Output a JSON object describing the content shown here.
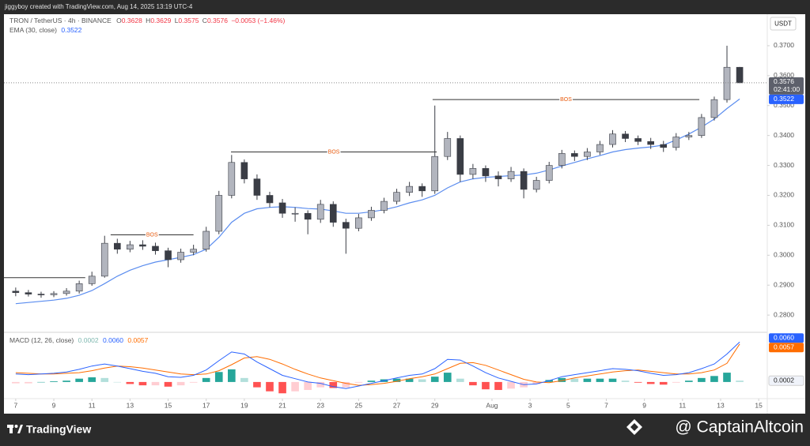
{
  "header": {
    "credit": "jiggyboy created with TradingView.com, Aug 14, 2025 13:19 UTC-4"
  },
  "footer": {
    "brand": "TradingView",
    "handle": "@ CaptainAltcoin"
  },
  "chart_data": [
    {
      "type": "candlestick",
      "title": "TRON / TetherUS · 4h · BINANCE",
      "ohlc_labels": [
        "O",
        "H",
        "L",
        "C"
      ],
      "change": "−0.0053 (−1.46%)",
      "countdown": "02:41:00",
      "currency": "USDT",
      "up_color": "#b2b5be",
      "down_color": "#3a3d45",
      "wick_color": "#3a3d45",
      "grid": false,
      "x": [
        0,
        4,
        8,
        12,
        16,
        20,
        24,
        28,
        32,
        36,
        40,
        44,
        48,
        52,
        56,
        60,
        64,
        68,
        72,
        76,
        80,
        84,
        88,
        92,
        96,
        100,
        104,
        108,
        112,
        116,
        120,
        124,
        128,
        132,
        136,
        140,
        144,
        148,
        152,
        156,
        160,
        164,
        168,
        172,
        176,
        180,
        184,
        188,
        192,
        196,
        200,
        204,
        208,
        212,
        216,
        220,
        224,
        228
      ],
      "ohlc": [
        [
          0.288,
          0.2892,
          0.2863,
          0.2875
        ],
        [
          0.2875,
          0.2884,
          0.2862,
          0.287
        ],
        [
          0.287,
          0.2878,
          0.2858,
          0.2868
        ],
        [
          0.2868,
          0.288,
          0.286,
          0.2872
        ],
        [
          0.2872,
          0.289,
          0.2865,
          0.288
        ],
        [
          0.288,
          0.2915,
          0.2872,
          0.2905
        ],
        [
          0.2905,
          0.2945,
          0.2898,
          0.293
        ],
        [
          0.293,
          0.3065,
          0.2925,
          0.304
        ],
        [
          0.304,
          0.3055,
          0.3005,
          0.302
        ],
        [
          0.302,
          0.3048,
          0.301,
          0.3035
        ],
        [
          0.3035,
          0.305,
          0.3018,
          0.303
        ],
        [
          0.303,
          0.3042,
          0.3002,
          0.3015
        ],
        [
          0.3015,
          0.3025,
          0.296,
          0.2985
        ],
        [
          0.2985,
          0.3022,
          0.2975,
          0.301
        ],
        [
          0.301,
          0.3035,
          0.3,
          0.302
        ],
        [
          0.302,
          0.3095,
          0.3012,
          0.308
        ],
        [
          0.308,
          0.3215,
          0.307,
          0.32
        ],
        [
          0.32,
          0.3335,
          0.319,
          0.331
        ],
        [
          0.331,
          0.332,
          0.324,
          0.3255
        ],
        [
          0.3255,
          0.327,
          0.3185,
          0.32
        ],
        [
          0.32,
          0.3212,
          0.316,
          0.3175
        ],
        [
          0.3175,
          0.3188,
          0.3125,
          0.314
        ],
        [
          0.314,
          0.316,
          0.3112,
          0.314
        ],
        [
          0.314,
          0.315,
          0.307,
          0.312
        ],
        [
          0.312,
          0.3185,
          0.3108,
          0.317
        ],
        [
          0.317,
          0.318,
          0.3095,
          0.311
        ],
        [
          0.311,
          0.3122,
          0.3005,
          0.309
        ],
        [
          0.309,
          0.3138,
          0.308,
          0.3125
        ],
        [
          0.3125,
          0.3162,
          0.3115,
          0.315
        ],
        [
          0.315,
          0.3192,
          0.314,
          0.318
        ],
        [
          0.318,
          0.3222,
          0.317,
          0.321
        ],
        [
          0.321,
          0.3245,
          0.3198,
          0.323
        ],
        [
          0.323,
          0.324,
          0.3195,
          0.3215
        ],
        [
          0.3215,
          0.35,
          0.3205,
          0.333
        ],
        [
          0.333,
          0.3412,
          0.3318,
          0.339
        ],
        [
          0.339,
          0.34,
          0.3245,
          0.327
        ],
        [
          0.327,
          0.3305,
          0.3255,
          0.329
        ],
        [
          0.329,
          0.33,
          0.3245,
          0.3265
        ],
        [
          0.3265,
          0.328,
          0.323,
          0.3255
        ],
        [
          0.3255,
          0.3295,
          0.3245,
          0.328
        ],
        [
          0.328,
          0.329,
          0.319,
          0.322
        ],
        [
          0.322,
          0.3262,
          0.321,
          0.325
        ],
        [
          0.325,
          0.3312,
          0.324,
          0.33
        ],
        [
          0.33,
          0.3352,
          0.329,
          0.334
        ],
        [
          0.334,
          0.335,
          0.3315,
          0.333
        ],
        [
          0.333,
          0.3358,
          0.3318,
          0.3345
        ],
        [
          0.3345,
          0.3382,
          0.3335,
          0.337
        ],
        [
          0.337,
          0.3418,
          0.336,
          0.3405
        ],
        [
          0.3405,
          0.3415,
          0.3378,
          0.339
        ],
        [
          0.339,
          0.34,
          0.3368,
          0.338
        ],
        [
          0.338,
          0.3392,
          0.3355,
          0.337
        ],
        [
          0.337,
          0.3382,
          0.3345,
          0.336
        ],
        [
          0.336,
          0.3408,
          0.335,
          0.3395
        ],
        [
          0.3395,
          0.3412,
          0.3385,
          0.34
        ],
        [
          0.34,
          0.3472,
          0.3392,
          0.346
        ],
        [
          0.346,
          0.353,
          0.345,
          0.352
        ],
        [
          0.352,
          0.37,
          0.351,
          0.3628
        ],
        [
          0.3628,
          0.3629,
          0.3575,
          0.3576
        ]
      ],
      "ema": {
        "name": "EMA (30, close)",
        "color": "#5b8def",
        "values": [
          0.2838,
          0.2842,
          0.2846,
          0.285,
          0.2856,
          0.2866,
          0.2882,
          0.2905,
          0.293,
          0.295,
          0.2965,
          0.2977,
          0.2985,
          0.2993,
          0.3002,
          0.302,
          0.306,
          0.311,
          0.314,
          0.3155,
          0.316,
          0.3162,
          0.316,
          0.3156,
          0.3154,
          0.3148,
          0.314,
          0.314,
          0.3145,
          0.3152,
          0.3162,
          0.3175,
          0.3185,
          0.32,
          0.3225,
          0.3245,
          0.3255,
          0.326,
          0.3263,
          0.3266,
          0.3268,
          0.3274,
          0.3285,
          0.3298,
          0.331,
          0.3322,
          0.3333,
          0.3345,
          0.3353,
          0.3358,
          0.3362,
          0.3368,
          0.3385,
          0.3405,
          0.3428,
          0.3455,
          0.349,
          0.3522
        ]
      },
      "level_color": "#333333",
      "level_label_color": "#e8590c",
      "levels": [
        {
          "value": 0.2925,
          "x": [
            -3.7,
            21.9
          ]
        },
        {
          "label": "BOS",
          "value": 0.3068,
          "x": [
            29.9,
            56
          ]
        },
        {
          "label": "BOS",
          "value": 0.3345,
          "x": [
            67.8,
            132.6
          ]
        },
        {
          "label": "BOS",
          "value": 0.352,
          "x": [
            131.3,
            215.3
          ]
        }
      ],
      "xlim": [
        -3.7,
        236.7
      ],
      "xticks": [
        {
          "value": 0,
          "label": "7"
        },
        {
          "value": 12,
          "label": "9"
        },
        {
          "value": 24,
          "label": "11"
        },
        {
          "value": 36,
          "label": "13"
        },
        {
          "value": 48,
          "label": "15"
        },
        {
          "value": 60,
          "label": "17"
        },
        {
          "value": 72,
          "label": "19"
        },
        {
          "value": 84,
          "label": "21"
        },
        {
          "value": 96,
          "label": "23"
        },
        {
          "value": 108,
          "label": "25"
        },
        {
          "value": 120,
          "label": "27"
        },
        {
          "value": 132,
          "label": "29"
        },
        {
          "value": 150,
          "label": "Aug"
        },
        {
          "value": 162,
          "label": "3"
        },
        {
          "value": 174,
          "label": "5"
        },
        {
          "value": 186,
          "label": "7"
        },
        {
          "value": 198,
          "label": "9"
        },
        {
          "value": 210,
          "label": "11"
        },
        {
          "value": 222,
          "label": "13"
        },
        {
          "value": 234,
          "label": "15"
        }
      ],
      "ylim": [
        0.2745,
        0.38
      ],
      "yticks": [
        {
          "value": 0.28,
          "label": "0.2800"
        },
        {
          "value": 0.29,
          "label": "0.2900"
        },
        {
          "value": 0.3,
          "label": "0.3000"
        },
        {
          "value": 0.31,
          "label": "0.3100"
        },
        {
          "value": 0.32,
          "label": "0.3200"
        },
        {
          "value": 0.33,
          "label": "0.3300"
        },
        {
          "value": 0.34,
          "label": "0.3400"
        },
        {
          "value": 0.35,
          "label": "0.3500"
        },
        {
          "value": 0.36,
          "label": "0.3600"
        },
        {
          "value": 0.37,
          "label": "0.3700"
        }
      ]
    },
    {
      "type": "macd",
      "title": "MACD (12, 26, close)",
      "histogram": {
        "colors": [
          "#26a69a",
          "#b2dfdb",
          "#ffcdd2",
          "#ff5252"
        ],
        "values": [
          -0.0002,
          -0.0002,
          0,
          0.0001,
          0.0002,
          0.0005,
          0.0007,
          0.0006,
          0,
          -0.0003,
          -0.0005,
          -0.0005,
          -0.0007,
          -0.0005,
          -0.0001,
          0.0006,
          0.0015,
          0.0019,
          0.0006,
          -0.0008,
          -0.0014,
          -0.0017,
          -0.0014,
          -0.0012,
          -0.0008,
          -0.0009,
          -0.0008,
          -0.0001,
          0.0002,
          0.0004,
          0.0005,
          0.0005,
          0.0004,
          0.0008,
          0.0014,
          0.0005,
          -0.0005,
          -0.0011,
          -0.0012,
          -0.001,
          -0.0008,
          -0.0003,
          0.0003,
          0.0006,
          0.0005,
          0.0005,
          0.0005,
          0.0005,
          0.0002,
          -0.0001,
          -0.0003,
          -0.0004,
          -0.0001,
          0.0002,
          0.0006,
          0.0009,
          0.0014,
          0.0002
        ]
      },
      "macd": {
        "color": "#2962ff",
        "last_label": "0.0060",
        "values": [
          0.0012,
          0.0011,
          0.0012,
          0.0013,
          0.0015,
          0.0019,
          0.0024,
          0.0027,
          0.0024,
          0.002,
          0.0016,
          0.0013,
          0.0008,
          0.0007,
          0.001,
          0.0018,
          0.0032,
          0.0045,
          0.0042,
          0.003,
          0.002,
          0.001,
          0.0005,
          0,
          -0.0002,
          -0.0007,
          -0.001,
          -0.0006,
          -0.0002,
          0.0002,
          0.0006,
          0.001,
          0.0012,
          0.002,
          0.0034,
          0.0033,
          0.0024,
          0.0014,
          0.0006,
          0.0001,
          -0.0004,
          -0.0003,
          0.0002,
          0.0008,
          0.0011,
          0.0014,
          0.0017,
          0.002,
          0.0019,
          0.0017,
          0.0013,
          0.001,
          0.0011,
          0.0014,
          0.002,
          0.0027,
          0.0042,
          0.006
        ]
      },
      "signal": {
        "color": "#ff6d00",
        "values": [
          0.0014,
          0.0013,
          0.0012,
          0.0012,
          0.0013,
          0.0014,
          0.0017,
          0.0021,
          0.0024,
          0.0023,
          0.0021,
          0.0018,
          0.0015,
          0.0012,
          0.0011,
          0.0012,
          0.0017,
          0.0026,
          0.0036,
          0.0038,
          0.0034,
          0.0027,
          0.0019,
          0.0012,
          0.0006,
          0.0002,
          -0.0002,
          -0.0005,
          -0.0004,
          -0.0002,
          0.0001,
          0.0005,
          0.0008,
          0.0012,
          0.002,
          0.0028,
          0.0029,
          0.0025,
          0.0018,
          0.0011,
          0.0004,
          0,
          -0.0001,
          0.0002,
          0.0006,
          0.0009,
          0.0012,
          0.0015,
          0.0017,
          0.0018,
          0.0016,
          0.0014,
          0.0012,
          0.0012,
          0.0014,
          0.0018,
          0.0028,
          0.0057
        ]
      },
      "ylim": [
        -0.0025,
        0.0071
      ]
    }
  ]
}
